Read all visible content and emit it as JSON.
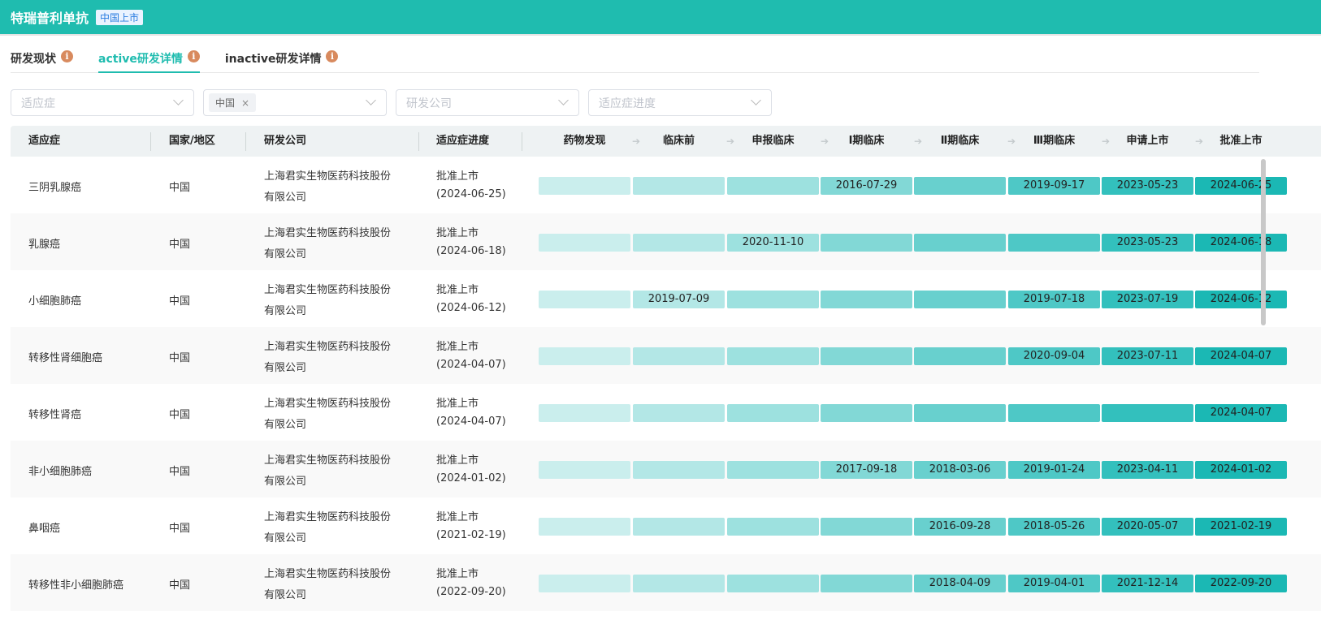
{
  "header": {
    "title": "特瑞普利单抗",
    "badge": "中国上市"
  },
  "tabs": [
    {
      "label": "研发现状"
    },
    {
      "label": "active研发详情"
    },
    {
      "label": "inactive研发详情"
    }
  ],
  "filters": [
    {
      "placeholder": "适应症"
    },
    {
      "tag": "中国",
      "remove": "×"
    },
    {
      "placeholder": "研发公司"
    },
    {
      "placeholder": "适应症进度"
    }
  ],
  "columns": [
    "适应症",
    "国家/地区",
    "研发公司",
    "适应症进度"
  ],
  "stages": [
    "药物发现",
    "临床前",
    "申报临床",
    "Ⅰ期临床",
    "Ⅱ期临床",
    "Ⅲ期临床",
    "申请上市",
    "批准上市"
  ],
  "stage_colors": [
    "#caeeed",
    "#b3e7e6",
    "#9de1df",
    "#82d8d6",
    "#68d0ce",
    "#4ec8c6",
    "#33c0bd",
    "#1bb8b4"
  ],
  "rows": [
    {
      "indication": "三阴乳腺癌",
      "region": "中国",
      "company": [
        "上海君实生物医药科技股份",
        "有限公司"
      ],
      "progress": [
        "批准上市",
        "(2024-06-25)"
      ],
      "dates": [
        "",
        "",
        "",
        "2016-07-29",
        "",
        "2019-09-17",
        "2023-05-23",
        "2024-06-25"
      ]
    },
    {
      "indication": "乳腺癌",
      "region": "中国",
      "company": [
        "上海君实生物医药科技股份",
        "有限公司"
      ],
      "progress": [
        "批准上市",
        "(2024-06-18)"
      ],
      "dates": [
        "",
        "",
        "2020-11-10",
        "",
        "",
        "",
        "2023-05-23",
        "2024-06-18"
      ]
    },
    {
      "indication": "小细胞肺癌",
      "region": "中国",
      "company": [
        "上海君实生物医药科技股份",
        "有限公司"
      ],
      "progress": [
        "批准上市",
        "(2024-06-12)"
      ],
      "dates": [
        "",
        "2019-07-09",
        "",
        "",
        "",
        "2019-07-18",
        "2023-07-19",
        "2024-06-12"
      ]
    },
    {
      "indication": "转移性肾细胞癌",
      "region": "中国",
      "company": [
        "上海君实生物医药科技股份",
        "有限公司"
      ],
      "progress": [
        "批准上市",
        "(2024-04-07)"
      ],
      "dates": [
        "",
        "",
        "",
        "",
        "",
        "2020-09-04",
        "2023-07-11",
        "2024-04-07"
      ]
    },
    {
      "indication": "转移性肾癌",
      "region": "中国",
      "company": [
        "上海君实生物医药科技股份",
        "有限公司"
      ],
      "progress": [
        "批准上市",
        "(2024-04-07)"
      ],
      "dates": [
        "",
        "",
        "",
        "",
        "",
        "",
        "",
        "2024-04-07"
      ]
    },
    {
      "indication": "非小细胞肺癌",
      "region": "中国",
      "company": [
        "上海君实生物医药科技股份",
        "有限公司"
      ],
      "progress": [
        "批准上市",
        "(2024-01-02)"
      ],
      "dates": [
        "",
        "",
        "",
        "2017-09-18",
        "2018-03-06",
        "2019-01-24",
        "2023-04-11",
        "2024-01-02"
      ]
    },
    {
      "indication": "鼻咽癌",
      "region": "中国",
      "company": [
        "上海君实生物医药科技股份",
        "有限公司"
      ],
      "progress": [
        "批准上市",
        "(2021-02-19)"
      ],
      "dates": [
        "",
        "",
        "",
        "",
        "2016-09-28",
        "2018-05-26",
        "2020-05-07",
        "2021-02-19"
      ]
    },
    {
      "indication": "转移性非小细胞肺癌",
      "region": "中国",
      "company": [
        "上海君实生物医药科技股份",
        "有限公司"
      ],
      "progress": [
        "批准上市",
        "(2022-09-20)"
      ],
      "dates": [
        "",
        "",
        "",
        "",
        "2018-04-09",
        "2019-04-01",
        "2021-12-14",
        "2022-09-20"
      ]
    }
  ]
}
